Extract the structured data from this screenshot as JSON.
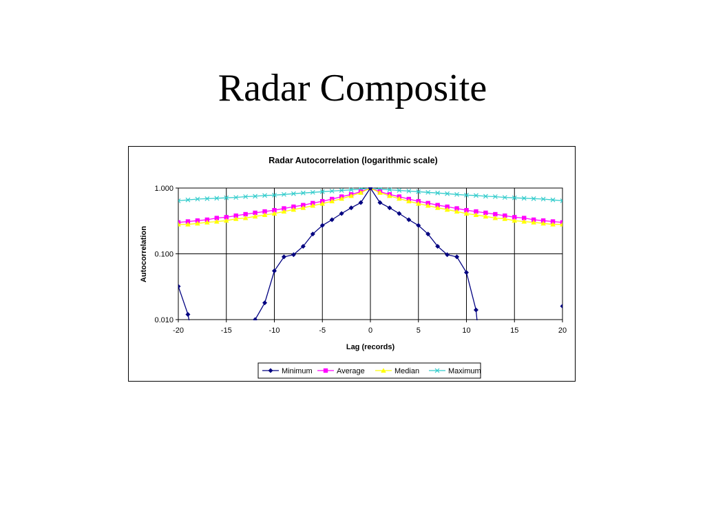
{
  "slide": {
    "title": "Radar Composite"
  },
  "chart_data": {
    "type": "line",
    "title": "Radar Autocorrelation (logarithmic scale)",
    "xlabel": "Lag (records)",
    "ylabel": "Autocorrelation",
    "xlim": [
      -20,
      20
    ],
    "ylim": [
      0.01,
      1.0
    ],
    "yscale": "log",
    "x_ticks": [
      -20,
      -15,
      -10,
      -5,
      0,
      5,
      10,
      15,
      20
    ],
    "x_tick_labels": [
      "-20",
      "-15",
      "-10",
      "-5",
      "0",
      "5",
      "10",
      "15",
      "20"
    ],
    "y_ticks": [
      0.01,
      0.1,
      1.0
    ],
    "y_tick_labels": [
      "0.010",
      "0.100",
      "1.000"
    ],
    "grid": true,
    "legend_position": "bottom",
    "series": [
      {
        "name": "Minimum",
        "color": "#000080",
        "marker": "diamond",
        "x": [
          -20,
          -19,
          -12,
          -11,
          -10,
          -9,
          -8,
          -7,
          -6,
          -5,
          -4,
          -3,
          -2,
          -1,
          0,
          1,
          2,
          3,
          4,
          5,
          6,
          7,
          8,
          9,
          10,
          11,
          20
        ],
        "y": [
          0.032,
          0.012,
          0.01,
          0.018,
          0.055,
          0.09,
          0.097,
          0.13,
          0.2,
          0.27,
          0.33,
          0.41,
          0.5,
          0.6,
          1.0,
          0.6,
          0.5,
          0.41,
          0.33,
          0.27,
          0.2,
          0.13,
          0.097,
          0.09,
          0.052,
          0.014,
          0.016
        ]
      },
      {
        "name": "Average",
        "color": "#ff00ff",
        "marker": "square",
        "x": [
          -20,
          -19,
          -18,
          -17,
          -16,
          -15,
          -14,
          -13,
          -12,
          -11,
          -10,
          -9,
          -8,
          -7,
          -6,
          -5,
          -4,
          -3,
          -2,
          -1,
          0,
          1,
          2,
          3,
          4,
          5,
          6,
          7,
          8,
          9,
          10,
          11,
          12,
          13,
          14,
          15,
          16,
          17,
          18,
          19,
          20
        ],
        "y": [
          0.3,
          0.31,
          0.32,
          0.33,
          0.35,
          0.36,
          0.38,
          0.4,
          0.42,
          0.44,
          0.46,
          0.49,
          0.52,
          0.55,
          0.59,
          0.63,
          0.68,
          0.74,
          0.8,
          0.88,
          1.0,
          0.88,
          0.8,
          0.74,
          0.68,
          0.63,
          0.59,
          0.55,
          0.52,
          0.49,
          0.46,
          0.44,
          0.42,
          0.4,
          0.38,
          0.36,
          0.35,
          0.33,
          0.32,
          0.31,
          0.3
        ]
      },
      {
        "name": "Median",
        "color": "#ffff00",
        "marker": "triangle",
        "x": [
          -20,
          -19,
          -18,
          -17,
          -16,
          -15,
          -14,
          -13,
          -12,
          -11,
          -10,
          -9,
          -8,
          -7,
          -6,
          -5,
          -4,
          -3,
          -2,
          -1,
          0,
          1,
          2,
          3,
          4,
          5,
          6,
          7,
          8,
          9,
          10,
          11,
          12,
          13,
          14,
          15,
          16,
          17,
          18,
          19,
          20
        ],
        "y": [
          0.28,
          0.28,
          0.29,
          0.3,
          0.31,
          0.32,
          0.34,
          0.35,
          0.37,
          0.39,
          0.41,
          0.44,
          0.47,
          0.5,
          0.54,
          0.58,
          0.63,
          0.69,
          0.76,
          0.85,
          1.0,
          0.85,
          0.76,
          0.69,
          0.63,
          0.58,
          0.54,
          0.5,
          0.47,
          0.44,
          0.41,
          0.39,
          0.37,
          0.35,
          0.34,
          0.32,
          0.31,
          0.3,
          0.29,
          0.28,
          0.28
        ]
      },
      {
        "name": "Maximum",
        "color": "#33cccc",
        "marker": "x",
        "x": [
          -20,
          -19,
          -18,
          -17,
          -16,
          -15,
          -14,
          -13,
          -12,
          -11,
          -10,
          -9,
          -8,
          -7,
          -6,
          -5,
          -4,
          -3,
          -2,
          -1,
          0,
          1,
          2,
          3,
          4,
          5,
          6,
          7,
          8,
          9,
          10,
          11,
          12,
          13,
          14,
          15,
          16,
          17,
          18,
          19,
          20
        ],
        "y": [
          0.64,
          0.66,
          0.68,
          0.69,
          0.7,
          0.71,
          0.72,
          0.74,
          0.75,
          0.77,
          0.78,
          0.8,
          0.82,
          0.84,
          0.86,
          0.88,
          0.9,
          0.92,
          0.94,
          0.96,
          1.0,
          0.96,
          0.94,
          0.92,
          0.9,
          0.88,
          0.86,
          0.84,
          0.82,
          0.8,
          0.78,
          0.77,
          0.75,
          0.74,
          0.72,
          0.71,
          0.7,
          0.69,
          0.68,
          0.66,
          0.64
        ]
      }
    ]
  }
}
